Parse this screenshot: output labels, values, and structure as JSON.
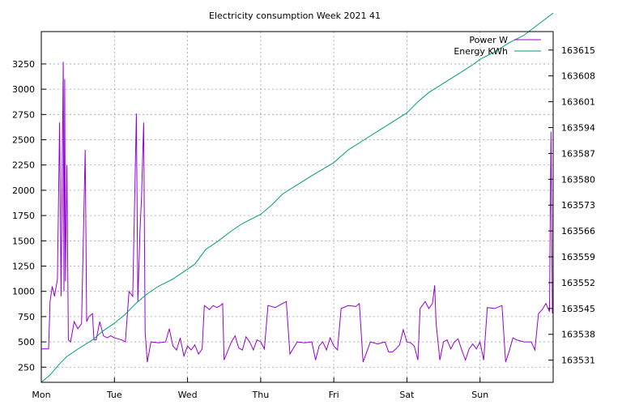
{
  "chart_data": {
    "type": "line",
    "title": "Electricity consumption Week 2021 41",
    "x_tick_labels": [
      "Mon",
      "Tue",
      "Wed",
      "Thu",
      "Fri",
      "Sat",
      "Sun"
    ],
    "xlim_days": [
      0,
      7
    ],
    "y_left": {
      "ticks": [
        250,
        500,
        750,
        1000,
        1250,
        1500,
        1750,
        2000,
        2250,
        2500,
        2750,
        3000,
        3250
      ],
      "range": [
        100,
        3570
      ]
    },
    "y_right": {
      "ticks": [
        163531,
        163538,
        163545,
        163552,
        163559,
        163566,
        163573,
        163580,
        163587,
        163594,
        163601,
        163608,
        163615
      ],
      "range": [
        163525,
        163620
      ]
    },
    "grid": true,
    "legend_placement": "top-right",
    "series": [
      {
        "name": "Power W",
        "axis": "left",
        "color": "#9400d3",
        "points": [
          [
            0.0,
            430
          ],
          [
            0.1,
            430
          ],
          [
            0.12,
            900
          ],
          [
            0.15,
            1050
          ],
          [
            0.18,
            950
          ],
          [
            0.22,
            1120
          ],
          [
            0.25,
            2670
          ],
          [
            0.27,
            950
          ],
          [
            0.3,
            3270
          ],
          [
            0.31,
            1000
          ],
          [
            0.32,
            3100
          ],
          [
            0.33,
            1100
          ],
          [
            0.35,
            2250
          ],
          [
            0.37,
            520
          ],
          [
            0.4,
            500
          ],
          [
            0.45,
            700
          ],
          [
            0.5,
            630
          ],
          [
            0.55,
            680
          ],
          [
            0.6,
            2400
          ],
          [
            0.62,
            700
          ],
          [
            0.65,
            750
          ],
          [
            0.7,
            780
          ],
          [
            0.72,
            520
          ],
          [
            0.75,
            520
          ],
          [
            0.8,
            700
          ],
          [
            0.85,
            560
          ],
          [
            0.9,
            540
          ],
          [
            0.95,
            560
          ],
          [
            1.0,
            540
          ],
          [
            1.05,
            530
          ],
          [
            1.1,
            520
          ],
          [
            1.15,
            500
          ],
          [
            1.2,
            1000
          ],
          [
            1.25,
            950
          ],
          [
            1.3,
            2760
          ],
          [
            1.32,
            900
          ],
          [
            1.35,
            1600
          ],
          [
            1.37,
            1920
          ],
          [
            1.4,
            2670
          ],
          [
            1.42,
            600
          ],
          [
            1.45,
            300
          ],
          [
            1.5,
            500
          ],
          [
            1.6,
            490
          ],
          [
            1.7,
            500
          ],
          [
            1.75,
            630
          ],
          [
            1.8,
            460
          ],
          [
            1.85,
            420
          ],
          [
            1.9,
            540
          ],
          [
            1.95,
            360
          ],
          [
            2.0,
            460
          ],
          [
            2.05,
            420
          ],
          [
            2.1,
            470
          ],
          [
            2.15,
            380
          ],
          [
            2.2,
            430
          ],
          [
            2.23,
            860
          ],
          [
            2.3,
            820
          ],
          [
            2.35,
            860
          ],
          [
            2.4,
            840
          ],
          [
            2.45,
            860
          ],
          [
            2.48,
            880
          ],
          [
            2.5,
            320
          ],
          [
            2.6,
            500
          ],
          [
            2.65,
            560
          ],
          [
            2.7,
            440
          ],
          [
            2.75,
            420
          ],
          [
            2.8,
            550
          ],
          [
            2.85,
            500
          ],
          [
            2.9,
            420
          ],
          [
            2.95,
            520
          ],
          [
            3.0,
            500
          ],
          [
            3.05,
            430
          ],
          [
            3.1,
            860
          ],
          [
            3.2,
            840
          ],
          [
            3.3,
            880
          ],
          [
            3.35,
            900
          ],
          [
            3.4,
            380
          ],
          [
            3.5,
            500
          ],
          [
            3.6,
            490
          ],
          [
            3.7,
            500
          ],
          [
            3.75,
            320
          ],
          [
            3.8,
            460
          ],
          [
            3.85,
            500
          ],
          [
            3.9,
            420
          ],
          [
            3.95,
            540
          ],
          [
            4.0,
            460
          ],
          [
            4.05,
            420
          ],
          [
            4.1,
            830
          ],
          [
            4.2,
            860
          ],
          [
            4.3,
            850
          ],
          [
            4.35,
            880
          ],
          [
            4.4,
            300
          ],
          [
            4.45,
            400
          ],
          [
            4.5,
            500
          ],
          [
            4.6,
            480
          ],
          [
            4.7,
            500
          ],
          [
            4.75,
            400
          ],
          [
            4.8,
            400
          ],
          [
            4.85,
            430
          ],
          [
            4.9,
            470
          ],
          [
            4.95,
            620
          ],
          [
            5.0,
            500
          ],
          [
            5.05,
            490
          ],
          [
            5.1,
            460
          ],
          [
            5.15,
            320
          ],
          [
            5.18,
            830
          ],
          [
            5.25,
            900
          ],
          [
            5.3,
            830
          ],
          [
            5.35,
            880
          ],
          [
            5.38,
            1060
          ],
          [
            5.4,
            680
          ],
          [
            5.45,
            320
          ],
          [
            5.5,
            500
          ],
          [
            5.55,
            520
          ],
          [
            5.6,
            430
          ],
          [
            5.65,
            500
          ],
          [
            5.7,
            530
          ],
          [
            5.75,
            420
          ],
          [
            5.8,
            320
          ],
          [
            5.85,
            430
          ],
          [
            5.9,
            480
          ],
          [
            5.95,
            430
          ],
          [
            6.0,
            500
          ],
          [
            6.05,
            320
          ],
          [
            6.1,
            840
          ],
          [
            6.2,
            830
          ],
          [
            6.3,
            860
          ],
          [
            6.35,
            300
          ],
          [
            6.4,
            410
          ],
          [
            6.45,
            540
          ],
          [
            6.5,
            520
          ],
          [
            6.6,
            500
          ],
          [
            6.7,
            500
          ],
          [
            6.75,
            420
          ],
          [
            6.8,
            780
          ],
          [
            6.85,
            820
          ],
          [
            6.9,
            880
          ],
          [
            6.95,
            800
          ],
          [
            6.97,
            2580
          ],
          [
            6.99,
            780
          ]
        ]
      },
      {
        "name": "Energy KWh",
        "axis": "right",
        "color": "#009e73",
        "points": [
          [
            0.0,
            163525
          ],
          [
            0.12,
            163527
          ],
          [
            0.25,
            163530
          ],
          [
            0.35,
            163532
          ],
          [
            0.5,
            163534
          ],
          [
            0.7,
            163536.5
          ],
          [
            0.85,
            163539
          ],
          [
            1.0,
            163541
          ],
          [
            1.15,
            163543.5
          ],
          [
            1.3,
            163546.5
          ],
          [
            1.45,
            163549
          ],
          [
            1.6,
            163551
          ],
          [
            1.8,
            163553
          ],
          [
            1.95,
            163555
          ],
          [
            2.1,
            163557
          ],
          [
            2.25,
            163561
          ],
          [
            2.4,
            163563
          ],
          [
            2.6,
            163566
          ],
          [
            2.75,
            163568
          ],
          [
            3.0,
            163570.5
          ],
          [
            3.15,
            163573
          ],
          [
            3.3,
            163576
          ],
          [
            3.5,
            163578.5
          ],
          [
            3.7,
            163581
          ],
          [
            4.0,
            163584.5
          ],
          [
            4.2,
            163588
          ],
          [
            4.4,
            163590.5
          ],
          [
            4.6,
            163593
          ],
          [
            4.8,
            163595.5
          ],
          [
            5.0,
            163598
          ],
          [
            5.15,
            163601
          ],
          [
            5.3,
            163603.5
          ],
          [
            5.5,
            163606
          ],
          [
            5.7,
            163608.5
          ],
          [
            5.9,
            163611
          ],
          [
            6.0,
            163612.5
          ],
          [
            6.2,
            163614.5
          ],
          [
            6.4,
            163617
          ],
          [
            6.6,
            163619
          ],
          [
            6.8,
            163622
          ],
          [
            7.0,
            163625
          ]
        ]
      }
    ]
  }
}
